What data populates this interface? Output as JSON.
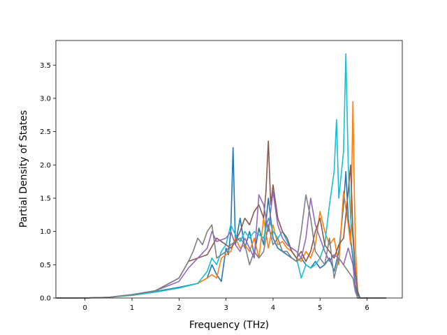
{
  "chart_data": {
    "type": "line",
    "title": "",
    "xlabel": "Frequency (THz)",
    "ylabel": "Partial Density of States",
    "xlim": [
      -0.62,
      6.75
    ],
    "ylim": [
      0,
      3.87
    ],
    "xticks": [
      0,
      1,
      2,
      3,
      4,
      5,
      6
    ],
    "yticks": [
      0.0,
      0.5,
      1.0,
      1.5,
      2.0,
      2.5,
      3.0,
      3.5
    ],
    "xtick_labels": [
      "0",
      "1",
      "2",
      "3",
      "4",
      "5",
      "6"
    ],
    "ytick_labels": [
      "0.0",
      "0.5",
      "1.0",
      "1.5",
      "2.0",
      "2.5",
      "3.0",
      "3.5"
    ],
    "grid": false,
    "legend": "none",
    "series": [
      {
        "color": "#1f77b4",
        "x": [
          -0.6,
          0.0,
          0.5,
          1.0,
          1.5,
          2.0,
          2.4,
          2.6,
          2.7,
          2.8,
          2.9,
          3.0,
          3.05,
          3.1,
          3.15,
          3.2,
          3.3,
          3.4,
          3.5,
          3.6,
          3.7,
          3.8,
          3.9,
          4.0,
          4.1,
          4.2,
          4.3,
          4.4,
          4.5,
          4.6,
          4.7,
          4.8,
          4.9,
          5.0,
          5.1,
          5.2,
          5.3,
          5.4,
          5.5,
          5.55,
          5.6,
          5.7,
          5.75,
          5.8,
          5.85,
          6.4
        ],
        "y": [
          0,
          0,
          0.01,
          0.05,
          0.1,
          0.16,
          0.22,
          0.3,
          0.5,
          0.35,
          0.25,
          0.75,
          0.65,
          1.0,
          2.26,
          0.8,
          1.2,
          0.75,
          1.0,
          0.65,
          1.05,
          0.8,
          1.5,
          0.9,
          0.75,
          0.7,
          0.65,
          0.6,
          0.55,
          0.6,
          0.5,
          0.45,
          0.55,
          0.45,
          0.5,
          0.6,
          0.4,
          0.7,
          1.4,
          1.9,
          1.2,
          0.6,
          0.2,
          0.05,
          0,
          0
        ]
      },
      {
        "color": "#ff7f0e",
        "x": [
          -0.6,
          0.0,
          0.5,
          1.0,
          1.5,
          2.0,
          2.4,
          2.6,
          2.7,
          2.8,
          2.9,
          3.0,
          3.1,
          3.2,
          3.3,
          3.4,
          3.5,
          3.6,
          3.7,
          3.8,
          3.9,
          4.0,
          4.1,
          4.2,
          4.3,
          4.4,
          4.5,
          4.6,
          4.7,
          4.8,
          4.9,
          5.0,
          5.1,
          5.2,
          5.3,
          5.4,
          5.5,
          5.6,
          5.65,
          5.7,
          5.72,
          5.75,
          5.8,
          5.85,
          6.4
        ],
        "y": [
          0,
          0,
          0.01,
          0.04,
          0.09,
          0.15,
          0.22,
          0.3,
          0.35,
          0.3,
          0.6,
          0.65,
          0.7,
          0.9,
          0.75,
          0.8,
          0.7,
          0.9,
          0.6,
          1.2,
          0.75,
          1.1,
          0.8,
          0.85,
          0.75,
          0.7,
          0.6,
          0.55,
          0.7,
          0.6,
          0.8,
          1.3,
          1.0,
          0.8,
          0.9,
          0.5,
          1.6,
          1.1,
          0.8,
          2.95,
          2.0,
          0.8,
          0.1,
          0,
          0
        ]
      },
      {
        "color": "#17becf",
        "x": [
          -0.6,
          0.0,
          0.5,
          1.0,
          1.5,
          2.0,
          2.4,
          2.6,
          2.7,
          2.8,
          2.9,
          3.0,
          3.1,
          3.2,
          3.3,
          3.4,
          3.5,
          3.6,
          3.7,
          3.8,
          3.9,
          4.0,
          4.1,
          4.2,
          4.3,
          4.4,
          4.5,
          4.6,
          4.7,
          4.8,
          4.9,
          5.0,
          5.1,
          5.2,
          5.3,
          5.35,
          5.4,
          5.5,
          5.55,
          5.6,
          5.65,
          5.7,
          5.75,
          5.8,
          5.85,
          6.4
        ],
        "y": [
          0,
          0,
          0.01,
          0.04,
          0.09,
          0.15,
          0.22,
          0.4,
          0.6,
          0.5,
          0.7,
          0.8,
          1.1,
          0.95,
          0.85,
          1.0,
          0.9,
          1.0,
          0.95,
          0.9,
          1.2,
          1.0,
          0.9,
          1.0,
          0.85,
          0.7,
          0.6,
          0.3,
          0.5,
          0.45,
          0.5,
          0.6,
          0.8,
          1.4,
          1.9,
          2.68,
          1.5,
          2.2,
          3.67,
          2.0,
          1.2,
          0.9,
          0.4,
          0.1,
          0,
          0
        ]
      },
      {
        "color": "#8c564b",
        "x": [
          -0.6,
          0.0,
          0.5,
          1.0,
          1.5,
          2.0,
          2.2,
          2.4,
          2.6,
          2.8,
          3.0,
          3.1,
          3.2,
          3.3,
          3.4,
          3.5,
          3.6,
          3.7,
          3.8,
          3.85,
          3.9,
          3.95,
          4.0,
          4.1,
          4.2,
          4.3,
          4.4,
          4.5,
          4.6,
          4.7,
          4.8,
          4.9,
          5.0,
          5.1,
          5.2,
          5.3,
          5.4,
          5.5,
          5.6,
          5.65,
          5.7,
          5.75,
          5.8,
          5.85,
          6.4
        ],
        "y": [
          0,
          0,
          0.01,
          0.05,
          0.11,
          0.3,
          0.55,
          0.6,
          0.65,
          0.9,
          0.8,
          0.75,
          0.85,
          1.0,
          1.2,
          1.1,
          1.3,
          1.4,
          1.2,
          1.6,
          2.36,
          1.4,
          1.7,
          1.2,
          1.0,
          0.9,
          0.7,
          0.6,
          0.7,
          0.55,
          0.7,
          1.0,
          1.2,
          0.8,
          0.7,
          0.6,
          0.8,
          0.9,
          1.6,
          2.0,
          1.0,
          0.4,
          0.1,
          0,
          0
        ]
      },
      {
        "color": "#9467bd",
        "x": [
          -0.6,
          0.0,
          0.5,
          1.0,
          1.5,
          2.0,
          2.2,
          2.4,
          2.6,
          2.7,
          2.8,
          3.0,
          3.1,
          3.2,
          3.3,
          3.4,
          3.5,
          3.6,
          3.7,
          3.8,
          3.9,
          4.0,
          4.1,
          4.2,
          4.3,
          4.4,
          4.5,
          4.6,
          4.7,
          4.8,
          4.9,
          5.0,
          5.1,
          5.2,
          5.3,
          5.4,
          5.5,
          5.6,
          5.7,
          5.75,
          5.8,
          5.85,
          6.4
        ],
        "y": [
          0,
          0,
          0.01,
          0.05,
          0.11,
          0.25,
          0.45,
          0.6,
          0.75,
          1.0,
          0.85,
          0.9,
          1.0,
          0.8,
          0.7,
          0.9,
          0.75,
          0.6,
          1.55,
          1.4,
          1.0,
          1.6,
          1.1,
          0.9,
          0.8,
          0.75,
          0.7,
          0.6,
          0.9,
          1.5,
          1.1,
          0.9,
          0.7,
          0.55,
          0.65,
          0.6,
          0.5,
          0.75,
          0.5,
          0.15,
          0,
          0,
          0
        ]
      },
      {
        "color": "#7f7f7f",
        "x": [
          -0.6,
          0.0,
          0.5,
          1.0,
          1.5,
          2.0,
          2.2,
          2.3,
          2.4,
          2.5,
          2.6,
          2.7,
          2.8,
          3.0,
          3.1,
          3.2,
          3.3,
          3.4,
          3.5,
          3.6,
          3.7,
          3.8,
          3.9,
          4.0,
          4.1,
          4.2,
          4.3,
          4.4,
          4.5,
          4.6,
          4.7,
          4.8,
          4.9,
          5.0,
          5.1,
          5.2,
          5.3,
          5.4,
          5.5,
          5.6,
          5.7,
          5.75,
          5.8,
          5.85,
          6.4
        ],
        "y": [
          0,
          0,
          0.01,
          0.05,
          0.11,
          0.3,
          0.55,
          0.7,
          0.9,
          0.8,
          1.0,
          1.1,
          0.6,
          0.7,
          0.8,
          0.85,
          0.9,
          0.8,
          0.5,
          0.7,
          0.6,
          0.7,
          1.1,
          0.8,
          0.9,
          0.7,
          0.7,
          0.6,
          0.55,
          1.0,
          1.55,
          1.2,
          0.7,
          0.6,
          0.5,
          0.9,
          0.3,
          0.6,
          0.5,
          0.4,
          0.3,
          0.1,
          0,
          0,
          0
        ]
      }
    ]
  }
}
